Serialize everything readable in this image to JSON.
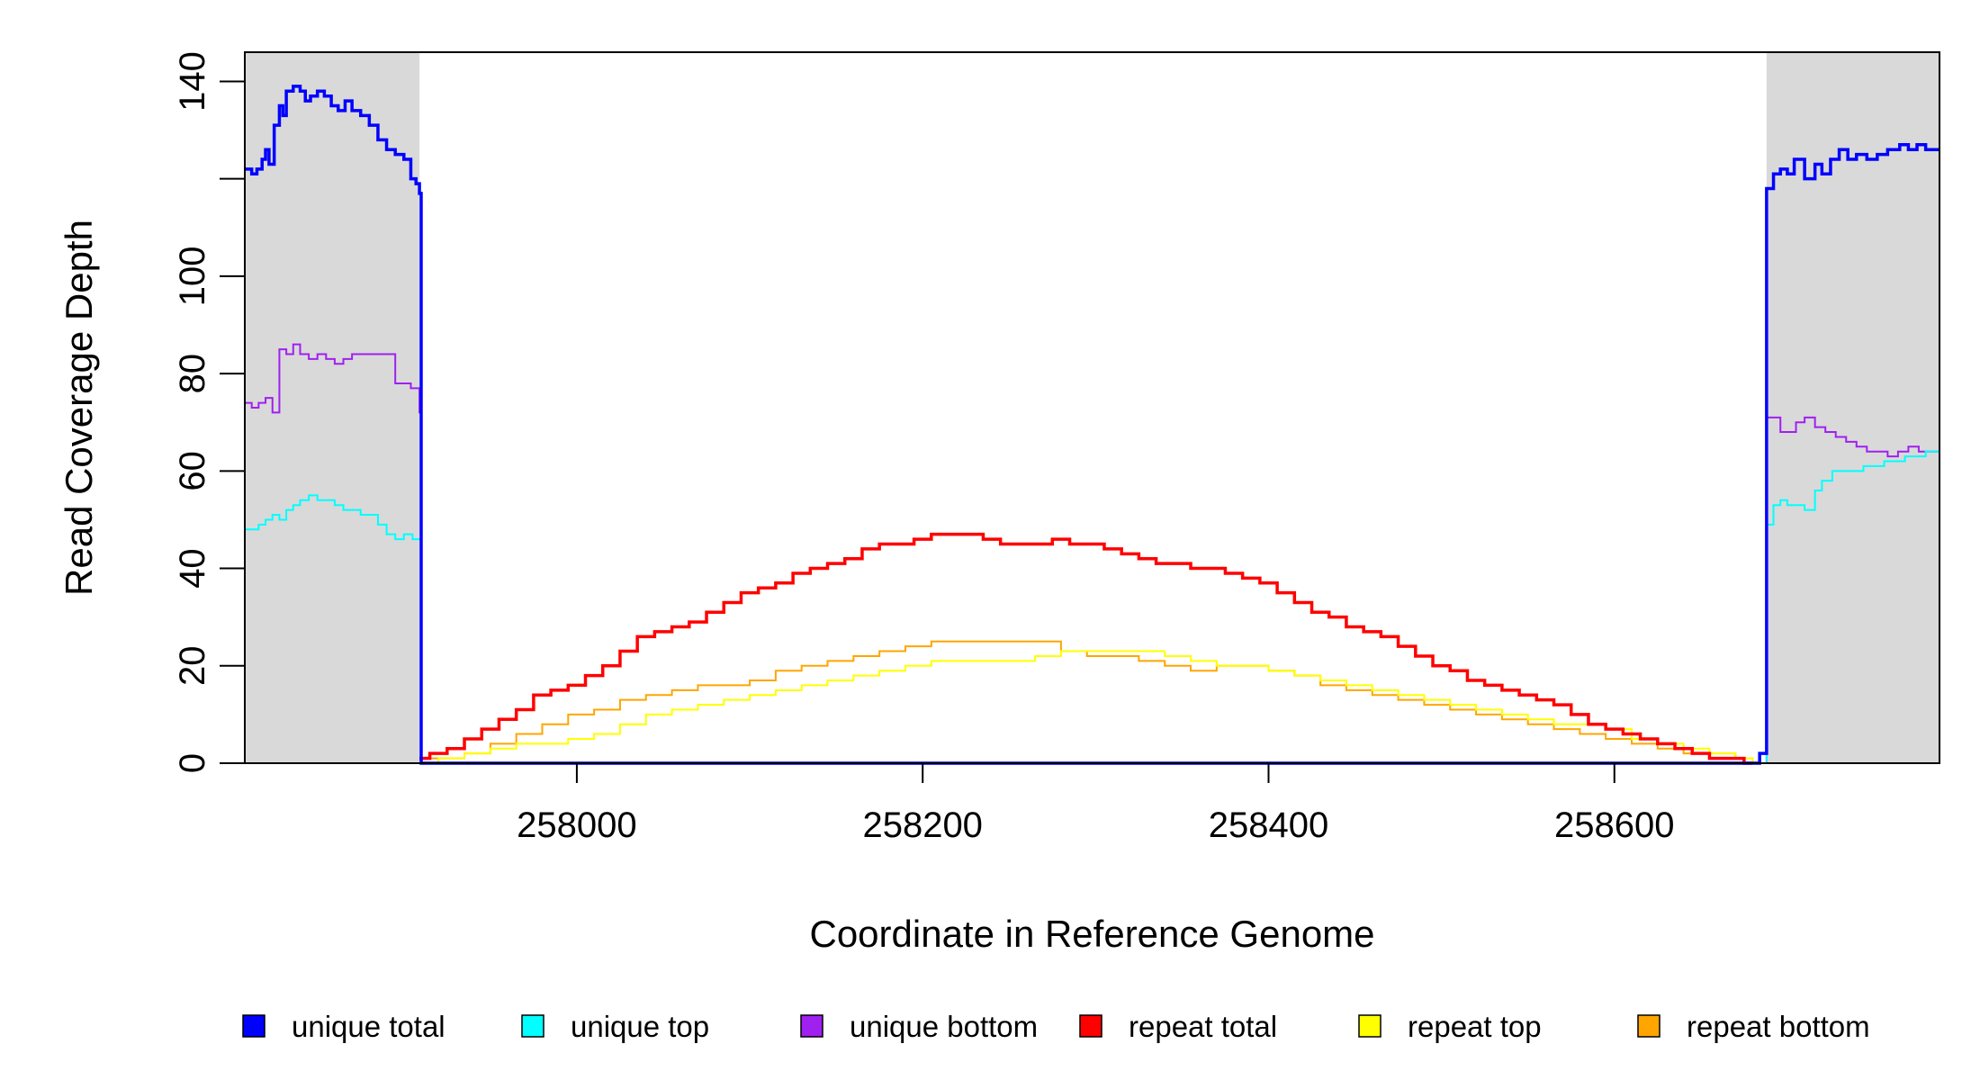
{
  "chart_data": {
    "type": "line",
    "title": "",
    "xlabel": "Coordinate in Reference Genome",
    "ylabel": "Read Coverage Depth",
    "xlim": [
      257808,
      258788
    ],
    "ylim": [
      0,
      146
    ],
    "x_ticks": [
      258000,
      258200,
      258400,
      258600
    ],
    "x_tick_labels": [
      "258000",
      "258200",
      "258400",
      "258600"
    ],
    "y_ticks": [
      0,
      20,
      40,
      60,
      80,
      100,
      120,
      140
    ],
    "y_tick_labels": [
      "0",
      "20",
      "40",
      "60",
      "80",
      "100",
      "",
      "140"
    ],
    "shaded_regions": [
      [
        257808,
        257909
      ],
      [
        258688,
        258788
      ]
    ],
    "shade_color": "#d9d9d9",
    "grid": false,
    "legend_position": "bottom",
    "series": [
      {
        "name": "unique total",
        "color": "#0000ff",
        "x": [
          257808,
          257812,
          257815,
          257818,
          257820,
          257822,
          257825,
          257828,
          257830,
          257832,
          257836,
          257840,
          257843,
          257846,
          257850,
          257854,
          257858,
          257862,
          257866,
          257870,
          257875,
          257880,
          257885,
          257890,
          257895,
          257900,
          257904,
          257907,
          257909,
          257910,
          258680,
          258684,
          258686,
          258688,
          258692,
          258696,
          258700,
          258704,
          258710,
          258716,
          258720,
          258725,
          258730,
          258735,
          258740,
          258746,
          258752,
          258758,
          258765,
          258770,
          258775,
          258780,
          258788
        ],
        "y": [
          122,
          121,
          122,
          124,
          126,
          123,
          131,
          135,
          133,
          138,
          139,
          138,
          136,
          137,
          138,
          137,
          135,
          134,
          136,
          134,
          133,
          131,
          128,
          126,
          125,
          124,
          120,
          119,
          117,
          0,
          0,
          2,
          2,
          118,
          121,
          122,
          121,
          124,
          120,
          123,
          121,
          124,
          126,
          124,
          125,
          124,
          125,
          126,
          127,
          126,
          127,
          126,
          126
        ]
      },
      {
        "name": "unique top",
        "color": "#00ffff",
        "x": [
          257808,
          257812,
          257816,
          257820,
          257824,
          257828,
          257832,
          257836,
          257840,
          257845,
          257850,
          257855,
          257860,
          257865,
          257870,
          257875,
          257880,
          257885,
          257890,
          257895,
          257900,
          257905,
          257909,
          257910,
          258688,
          258692,
          258696,
          258700,
          258705,
          258710,
          258716,
          258720,
          258726,
          258732,
          258738,
          258744,
          258750,
          258756,
          258762,
          258768,
          258774,
          258780,
          258788
        ],
        "y": [
          48,
          48,
          49,
          50,
          51,
          50,
          52,
          53,
          54,
          55,
          54,
          54,
          53,
          52,
          52,
          51,
          51,
          49,
          47,
          46,
          47,
          46,
          46,
          0,
          49,
          53,
          54,
          53,
          53,
          52,
          56,
          58,
          60,
          60,
          60,
          61,
          61,
          62,
          62,
          63,
          63,
          64,
          64
        ]
      },
      {
        "name": "unique bottom",
        "color": "#a020f0",
        "x": [
          257808,
          257812,
          257816,
          257820,
          257824,
          257828,
          257832,
          257836,
          257840,
          257845,
          257850,
          257855,
          257860,
          257865,
          257870,
          257875,
          257880,
          257885,
          257890,
          257895,
          257900,
          257904,
          257909,
          257910,
          258688,
          258692,
          258696,
          258700,
          258705,
          258710,
          258716,
          258722,
          258728,
          258734,
          258740,
          258746,
          258752,
          258758,
          258764,
          258770,
          258776,
          258782,
          258788
        ],
        "y": [
          74,
          73,
          74,
          75,
          72,
          85,
          84,
          86,
          84,
          83,
          84,
          83,
          82,
          83,
          84,
          84,
          84,
          84,
          84,
          78,
          78,
          77,
          72,
          0,
          71,
          71,
          68,
          68,
          70,
          71,
          69,
          68,
          67,
          66,
          65,
          64,
          64,
          63,
          64,
          65,
          64,
          64,
          63
        ]
      },
      {
        "name": "repeat total",
        "color": "#ff0000",
        "x": [
          257909,
          257915,
          257925,
          257935,
          257945,
          257955,
          257965,
          257975,
          257985,
          257995,
          258005,
          258015,
          258025,
          258035,
          258045,
          258055,
          258065,
          258075,
          258085,
          258095,
          258105,
          258115,
          258125,
          258135,
          258145,
          258155,
          258165,
          258175,
          258185,
          258195,
          258205,
          258215,
          258225,
          258235,
          258245,
          258255,
          258265,
          258275,
          258285,
          258295,
          258305,
          258315,
          258325,
          258335,
          258345,
          258355,
          258365,
          258375,
          258385,
          258395,
          258405,
          258415,
          258425,
          258435,
          258445,
          258455,
          258465,
          258475,
          258485,
          258495,
          258505,
          258515,
          258525,
          258535,
          258545,
          258555,
          258565,
          258575,
          258585,
          258595,
          258605,
          258615,
          258625,
          258635,
          258645,
          258655,
          258665,
          258675,
          258680
        ],
        "y": [
          1,
          2,
          3,
          5,
          7,
          9,
          11,
          14,
          15,
          16,
          18,
          20,
          23,
          26,
          27,
          28,
          29,
          31,
          33,
          35,
          36,
          37,
          39,
          40,
          41,
          42,
          44,
          45,
          45,
          46,
          47,
          47,
          47,
          46,
          45,
          45,
          45,
          46,
          45,
          45,
          44,
          43,
          42,
          41,
          41,
          40,
          40,
          39,
          38,
          37,
          35,
          33,
          31,
          30,
          28,
          27,
          26,
          24,
          22,
          20,
          19,
          17,
          16,
          15,
          14,
          13,
          12,
          10,
          8,
          7,
          6,
          5,
          4,
          3,
          2,
          1,
          1,
          0,
          0
        ]
      },
      {
        "name": "repeat top",
        "color": "#ffff00",
        "x": [
          257909,
          257920,
          257935,
          257950,
          257965,
          257980,
          257995,
          258010,
          258025,
          258040,
          258055,
          258070,
          258085,
          258100,
          258115,
          258130,
          258145,
          258160,
          258175,
          258190,
          258205,
          258220,
          258235,
          258250,
          258265,
          258280,
          258295,
          258310,
          258325,
          258340,
          258355,
          258370,
          258385,
          258400,
          258415,
          258430,
          258445,
          258460,
          258475,
          258490,
          258505,
          258520,
          258535,
          258550,
          258565,
          258580,
          258595,
          258610,
          258625,
          258640,
          258655,
          258670,
          258680
        ],
        "y": [
          0,
          1,
          2,
          3,
          4,
          4,
          5,
          6,
          8,
          10,
          11,
          12,
          13,
          14,
          15,
          16,
          17,
          18,
          19,
          20,
          21,
          21,
          21,
          21,
          22,
          23,
          23,
          23,
          23,
          22,
          21,
          20,
          20,
          19,
          18,
          17,
          16,
          15,
          14,
          13,
          12,
          11,
          10,
          9,
          8,
          8,
          7,
          5,
          4,
          3,
          2,
          1,
          0
        ]
      },
      {
        "name": "repeat bottom",
        "color": "#ffa500",
        "x": [
          257909,
          257920,
          257935,
          257950,
          257965,
          257980,
          257995,
          258010,
          258025,
          258040,
          258055,
          258070,
          258085,
          258100,
          258115,
          258130,
          258145,
          258160,
          258175,
          258190,
          258205,
          258220,
          258235,
          258250,
          258265,
          258280,
          258295,
          258310,
          258325,
          258340,
          258355,
          258370,
          258385,
          258400,
          258415,
          258430,
          258445,
          258460,
          258475,
          258490,
          258505,
          258520,
          258535,
          258550,
          258565,
          258580,
          258595,
          258610,
          258625,
          258640,
          258655,
          258670,
          258680
        ],
        "y": [
          1,
          1,
          2,
          4,
          6,
          8,
          10,
          11,
          13,
          14,
          15,
          16,
          16,
          17,
          19,
          20,
          21,
          22,
          23,
          24,
          25,
          25,
          25,
          25,
          25,
          23,
          22,
          22,
          21,
          20,
          19,
          20,
          20,
          19,
          18,
          16,
          15,
          14,
          13,
          12,
          11,
          10,
          9,
          8,
          7,
          6,
          5,
          4,
          3,
          2,
          2,
          1,
          0
        ]
      }
    ]
  }
}
